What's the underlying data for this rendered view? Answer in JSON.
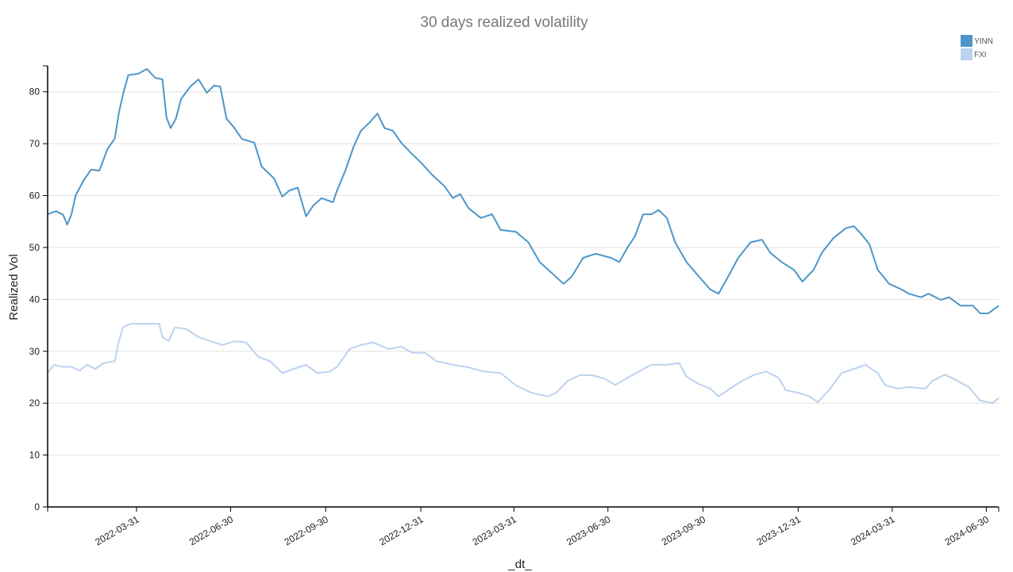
{
  "chart_data": {
    "type": "line",
    "title": "30 days realized volatility",
    "xlabel": "_dt_",
    "ylabel": "Realized Vol",
    "x_unit": "days since 2022-01-04",
    "xlim": [
      0,
      920
    ],
    "ylim": [
      0,
      85
    ],
    "grid": "horizontal",
    "legend_position": "top-right",
    "x_ticks": [
      {
        "day": 86,
        "label": "2022-03-31"
      },
      {
        "day": 177,
        "label": "2022-06-30"
      },
      {
        "day": 269,
        "label": "2022-09-30"
      },
      {
        "day": 361,
        "label": "2022-12-31"
      },
      {
        "day": 451,
        "label": "2023-03-31"
      },
      {
        "day": 542,
        "label": "2023-06-30"
      },
      {
        "day": 634,
        "label": "2023-09-30"
      },
      {
        "day": 726,
        "label": "2023-12-31"
      },
      {
        "day": 817,
        "label": "2024-03-31"
      },
      {
        "day": 908,
        "label": "2024-06-30"
      }
    ],
    "y_ticks": [
      "0",
      "10",
      "20",
      "30",
      "40",
      "50",
      "60",
      "70",
      "80"
    ],
    "series": [
      {
        "name": "YINN",
        "color": "#4e96c8",
        "points": [
          [
            0,
            56.4
          ],
          [
            8,
            57
          ],
          [
            15,
            56.3
          ],
          [
            19,
            54.4
          ],
          [
            23,
            56.4
          ],
          [
            27,
            60
          ],
          [
            35,
            63
          ],
          [
            42,
            65
          ],
          [
            50,
            64.8
          ],
          [
            58,
            69
          ],
          [
            65,
            71
          ],
          [
            69,
            76
          ],
          [
            73,
            79.6
          ],
          [
            78,
            83.2
          ],
          [
            88,
            83.5
          ],
          [
            96,
            84.4
          ],
          [
            104,
            82.7
          ],
          [
            111,
            82.4
          ],
          [
            115,
            75
          ],
          [
            119,
            73
          ],
          [
            124,
            74.8
          ],
          [
            129,
            78.6
          ],
          [
            138,
            81
          ],
          [
            146,
            82.4
          ],
          [
            154,
            79.8
          ],
          [
            161,
            81.2
          ],
          [
            167,
            81
          ],
          [
            173,
            74.8
          ],
          [
            180,
            73.2
          ],
          [
            188,
            70.9
          ],
          [
            200,
            70.2
          ],
          [
            207,
            65.6
          ],
          [
            219,
            63.3
          ],
          [
            227,
            59.8
          ],
          [
            234,
            61
          ],
          [
            242,
            61.5
          ],
          [
            250,
            56
          ],
          [
            257,
            58.1
          ],
          [
            265,
            59.5
          ],
          [
            276,
            58.7
          ],
          [
            280,
            61
          ],
          [
            288,
            64.8
          ],
          [
            296,
            69.4
          ],
          [
            303,
            72.5
          ],
          [
            311,
            74
          ],
          [
            319,
            75.8
          ],
          [
            326,
            73
          ],
          [
            334,
            72.5
          ],
          [
            342,
            70.2
          ],
          [
            353,
            67.9
          ],
          [
            361,
            66.4
          ],
          [
            372,
            64
          ],
          [
            384,
            61.8
          ],
          [
            392,
            59.5
          ],
          [
            399,
            60.3
          ],
          [
            407,
            57.6
          ],
          [
            419,
            55.7
          ],
          [
            430,
            56.4
          ],
          [
            438,
            53.4
          ],
          [
            453,
            53
          ],
          [
            465,
            51
          ],
          [
            476,
            47.2
          ],
          [
            488,
            45
          ],
          [
            499,
            43
          ],
          [
            507,
            44.4
          ],
          [
            518,
            48
          ],
          [
            530,
            48.8
          ],
          [
            545,
            48
          ],
          [
            553,
            47.2
          ],
          [
            561,
            50
          ],
          [
            568,
            52.1
          ],
          [
            576,
            56.4
          ],
          [
            584,
            56.4
          ],
          [
            591,
            57.2
          ],
          [
            599,
            55.7
          ],
          [
            607,
            51
          ],
          [
            618,
            47.2
          ],
          [
            630,
            44.4
          ],
          [
            641,
            41.9
          ],
          [
            649,
            41.1
          ],
          [
            660,
            45
          ],
          [
            668,
            48
          ],
          [
            680,
            51
          ],
          [
            691,
            51.5
          ],
          [
            699,
            49
          ],
          [
            710,
            47.2
          ],
          [
            722,
            45.7
          ],
          [
            730,
            43.4
          ],
          [
            741,
            45.7
          ],
          [
            749,
            49
          ],
          [
            760,
            51.8
          ],
          [
            772,
            53.7
          ],
          [
            780,
            54.1
          ],
          [
            787,
            52.6
          ],
          [
            795,
            50.6
          ],
          [
            803,
            45.7
          ],
          [
            814,
            43
          ],
          [
            826,
            41.9
          ],
          [
            833,
            41.1
          ],
          [
            845,
            40.4
          ],
          [
            852,
            41.1
          ],
          [
            864,
            39.9
          ],
          [
            872,
            40.4
          ],
          [
            883,
            38.8
          ],
          [
            895,
            38.8
          ],
          [
            902,
            37.3
          ],
          [
            910,
            37.3
          ],
          [
            920,
            38.8
          ]
        ]
      },
      {
        "name": "FXI",
        "color": "#bcd2ee",
        "points": [
          [
            0,
            25.8
          ],
          [
            6,
            27.4
          ],
          [
            15,
            27
          ],
          [
            23,
            27
          ],
          [
            31,
            26.3
          ],
          [
            38,
            27.4
          ],
          [
            46,
            26.6
          ],
          [
            54,
            27.7
          ],
          [
            65,
            28.1
          ],
          [
            69,
            32
          ],
          [
            73,
            34.7
          ],
          [
            81,
            35.3
          ],
          [
            96,
            35.3
          ],
          [
            108,
            35.3
          ],
          [
            111,
            32.7
          ],
          [
            117,
            32
          ],
          [
            123,
            34.6
          ],
          [
            134,
            34.3
          ],
          [
            146,
            32.7
          ],
          [
            157,
            32
          ],
          [
            169,
            31.2
          ],
          [
            180,
            31.9
          ],
          [
            192,
            31.7
          ],
          [
            204,
            28.9
          ],
          [
            215,
            28.1
          ],
          [
            227,
            25.8
          ],
          [
            238,
            26.6
          ],
          [
            250,
            27.4
          ],
          [
            261,
            25.8
          ],
          [
            273,
            26.1
          ],
          [
            280,
            27
          ],
          [
            292,
            30.4
          ],
          [
            303,
            31.2
          ],
          [
            315,
            31.7
          ],
          [
            330,
            30.4
          ],
          [
            342,
            30.9
          ],
          [
            353,
            29.7
          ],
          [
            365,
            29.7
          ],
          [
            376,
            28.1
          ],
          [
            392,
            27.4
          ],
          [
            407,
            26.9
          ],
          [
            422,
            26.1
          ],
          [
            438,
            25.8
          ],
          [
            453,
            23.4
          ],
          [
            468,
            22
          ],
          [
            484,
            21.3
          ],
          [
            492,
            22
          ],
          [
            503,
            24.3
          ],
          [
            515,
            25.4
          ],
          [
            526,
            25.4
          ],
          [
            538,
            24.8
          ],
          [
            549,
            23.5
          ],
          [
            561,
            24.9
          ],
          [
            572,
            26.1
          ],
          [
            584,
            27.4
          ],
          [
            599,
            27.4
          ],
          [
            611,
            27.7
          ],
          [
            618,
            25.1
          ],
          [
            630,
            23.7
          ],
          [
            641,
            22.8
          ],
          [
            649,
            21.3
          ],
          [
            660,
            22.8
          ],
          [
            672,
            24.3
          ],
          [
            684,
            25.5
          ],
          [
            695,
            26.1
          ],
          [
            707,
            24.9
          ],
          [
            714,
            22.5
          ],
          [
            726,
            22
          ],
          [
            737,
            21.3
          ],
          [
            745,
            20.2
          ],
          [
            757,
            22.8
          ],
          [
            768,
            25.8
          ],
          [
            780,
            26.6
          ],
          [
            791,
            27.4
          ],
          [
            803,
            25.8
          ],
          [
            810,
            23.5
          ],
          [
            822,
            22.8
          ],
          [
            833,
            23.1
          ],
          [
            849,
            22.8
          ],
          [
            856,
            24.3
          ],
          [
            868,
            25.5
          ],
          [
            880,
            24.3
          ],
          [
            891,
            23.1
          ],
          [
            902,
            20.5
          ],
          [
            914,
            20
          ],
          [
            920,
            21
          ]
        ]
      }
    ]
  }
}
